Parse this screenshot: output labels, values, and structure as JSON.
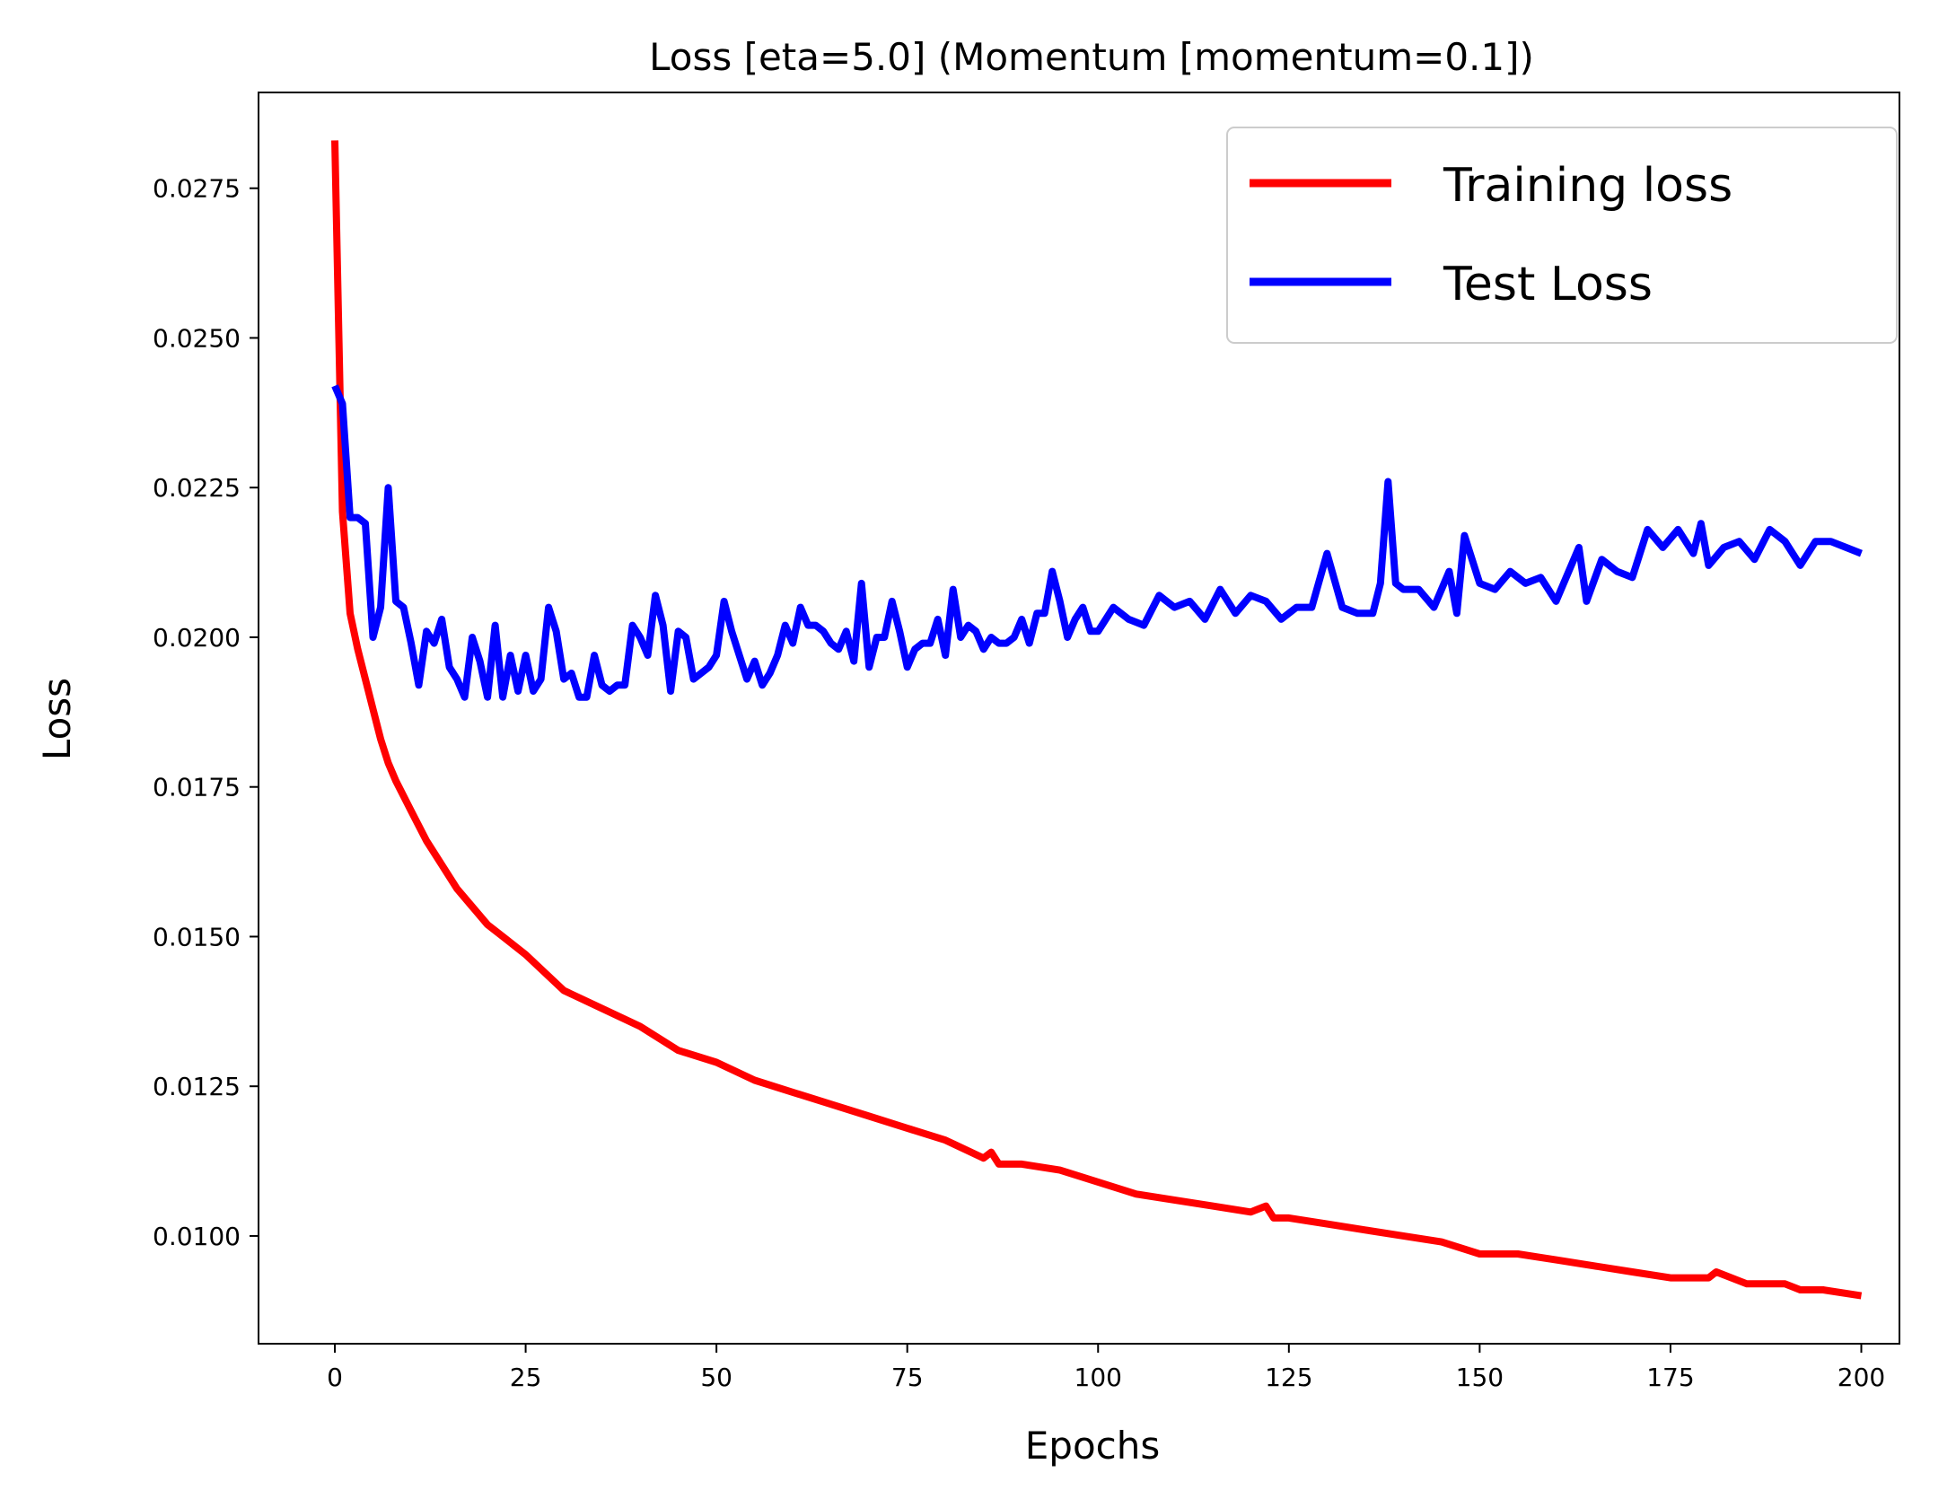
{
  "chart_data": {
    "type": "line",
    "title": "Loss [eta=5.0] (Momentum [momentum=0.1])",
    "xlabel": "Epochs",
    "ylabel": "Loss",
    "xlim": [
      -10,
      205
    ],
    "ylim": [
      0.0082,
      0.0291
    ],
    "x_ticks": [
      0,
      25,
      50,
      75,
      100,
      125,
      150,
      175,
      200
    ],
    "x_tick_labels": [
      "0",
      "25",
      "50",
      "75",
      "100",
      "125",
      "150",
      "175",
      "200"
    ],
    "y_ticks": [
      0.01,
      0.0125,
      0.015,
      0.0175,
      0.02,
      0.0225,
      0.025,
      0.0275
    ],
    "y_tick_labels": [
      "0.0100",
      "0.0125",
      "0.0150",
      "0.0175",
      "0.0200",
      "0.0225",
      "0.0250",
      "0.0275"
    ],
    "grid": false,
    "legend_position": "top-right",
    "series": [
      {
        "name": "Training loss",
        "color": "#ff0000",
        "x": [
          0,
          1,
          2,
          3,
          4,
          5,
          6,
          7,
          8,
          10,
          12,
          14,
          16,
          18,
          20,
          22,
          25,
          30,
          35,
          40,
          45,
          50,
          55,
          60,
          65,
          70,
          75,
          80,
          85,
          86,
          87,
          90,
          95,
          100,
          105,
          110,
          115,
          120,
          122,
          123,
          125,
          130,
          135,
          140,
          145,
          150,
          155,
          160,
          165,
          170,
          175,
          180,
          181,
          185,
          190,
          192,
          193,
          195,
          200
        ],
        "values": [
          0.0283,
          0.0221,
          0.0204,
          0.0198,
          0.0193,
          0.0188,
          0.0183,
          0.0179,
          0.0176,
          0.0171,
          0.0166,
          0.0162,
          0.0158,
          0.0155,
          0.0152,
          0.015,
          0.0147,
          0.0141,
          0.0138,
          0.0135,
          0.0131,
          0.0129,
          0.0126,
          0.0124,
          0.0122,
          0.012,
          0.0118,
          0.0116,
          0.0113,
          0.0114,
          0.0112,
          0.0112,
          0.0111,
          0.0109,
          0.0107,
          0.0106,
          0.0105,
          0.0104,
          0.0105,
          0.0103,
          0.0103,
          0.0102,
          0.0101,
          0.01,
          0.0099,
          0.0097,
          0.0097,
          0.0096,
          0.0095,
          0.0094,
          0.0093,
          0.0093,
          0.0094,
          0.0092,
          0.0092,
          0.0091,
          0.0091,
          0.0091,
          0.009
        ]
      },
      {
        "name": "Test Loss",
        "color": "#0000ff",
        "x": [
          0,
          1,
          2,
          3,
          4,
          5,
          6,
          7,
          8,
          9,
          10,
          11,
          12,
          13,
          14,
          15,
          16,
          17,
          18,
          19,
          20,
          21,
          22,
          23,
          24,
          25,
          26,
          27,
          28,
          29,
          30,
          31,
          32,
          33,
          34,
          35,
          36,
          37,
          38,
          39,
          40,
          41,
          42,
          43,
          44,
          45,
          46,
          47,
          48,
          49,
          50,
          51,
          52,
          53,
          54,
          55,
          56,
          57,
          58,
          59,
          60,
          61,
          62,
          63,
          64,
          65,
          66,
          67,
          68,
          69,
          70,
          71,
          72,
          73,
          74,
          75,
          76,
          77,
          78,
          79,
          80,
          81,
          82,
          83,
          84,
          85,
          86,
          87,
          88,
          89,
          90,
          91,
          92,
          93,
          94,
          95,
          96,
          97,
          98,
          99,
          100,
          102,
          104,
          106,
          108,
          110,
          112,
          114,
          116,
          118,
          120,
          122,
          124,
          126,
          128,
          130,
          132,
          134,
          136,
          137,
          138,
          139,
          140,
          142,
          144,
          146,
          147,
          148,
          150,
          152,
          154,
          156,
          158,
          160,
          162,
          163,
          164,
          166,
          168,
          170,
          172,
          174,
          176,
          178,
          179,
          180,
          182,
          184,
          186,
          188,
          190,
          192,
          194,
          196,
          198,
          200
        ],
        "values": [
          0.0242,
          0.0239,
          0.022,
          0.022,
          0.0219,
          0.02,
          0.0205,
          0.0225,
          0.0206,
          0.0205,
          0.0199,
          0.0192,
          0.0201,
          0.0199,
          0.0203,
          0.0195,
          0.0193,
          0.019,
          0.02,
          0.0196,
          0.019,
          0.0202,
          0.019,
          0.0197,
          0.0191,
          0.0197,
          0.0191,
          0.0193,
          0.0205,
          0.0201,
          0.0193,
          0.0194,
          0.019,
          0.019,
          0.0197,
          0.0192,
          0.0191,
          0.0192,
          0.0192,
          0.0202,
          0.02,
          0.0197,
          0.0207,
          0.0202,
          0.0191,
          0.0201,
          0.02,
          0.0193,
          0.0194,
          0.0195,
          0.0197,
          0.0206,
          0.0201,
          0.0197,
          0.0193,
          0.0196,
          0.0192,
          0.0194,
          0.0197,
          0.0202,
          0.0199,
          0.0205,
          0.0202,
          0.0202,
          0.0201,
          0.0199,
          0.0198,
          0.0201,
          0.0196,
          0.0209,
          0.0195,
          0.02,
          0.02,
          0.0206,
          0.0201,
          0.0195,
          0.0198,
          0.0199,
          0.0199,
          0.0203,
          0.0197,
          0.0208,
          0.02,
          0.0202,
          0.0201,
          0.0198,
          0.02,
          0.0199,
          0.0199,
          0.02,
          0.0203,
          0.0199,
          0.0204,
          0.0204,
          0.0211,
          0.0206,
          0.02,
          0.0203,
          0.0205,
          0.0201,
          0.0201,
          0.0205,
          0.0203,
          0.0202,
          0.0207,
          0.0205,
          0.0206,
          0.0203,
          0.0208,
          0.0204,
          0.0207,
          0.0206,
          0.0203,
          0.0205,
          0.0205,
          0.0214,
          0.0205,
          0.0204,
          0.0204,
          0.0209,
          0.0226,
          0.0209,
          0.0208,
          0.0208,
          0.0205,
          0.0211,
          0.0204,
          0.0217,
          0.0209,
          0.0208,
          0.0211,
          0.0209,
          0.021,
          0.0206,
          0.0212,
          0.0215,
          0.0206,
          0.0213,
          0.0211,
          0.021,
          0.0218,
          0.0215,
          0.0218,
          0.0214,
          0.0219,
          0.0212,
          0.0215,
          0.0216,
          0.0213,
          0.0218,
          0.0216,
          0.0212,
          0.0216,
          0.0216,
          0.0215,
          0.0214
        ]
      }
    ]
  }
}
